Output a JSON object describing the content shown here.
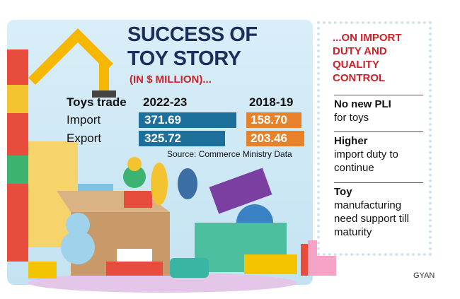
{
  "title": "SUCCESS OF TOY STORY",
  "subtitle": "(IN $ MILLION)...",
  "table": {
    "header": [
      "Toys trade",
      "2022-23",
      "2018-19"
    ],
    "rows": [
      [
        "Import",
        "371.69",
        "158.70"
      ],
      [
        "Export",
        "325.72",
        "203.46"
      ]
    ]
  },
  "source": "Source: Commerce Ministry Data",
  "side_panel": {
    "heading": "...ON IMPORT DUTY AND QUALITY CONTROL",
    "items": [
      {
        "bold": "No new PLI",
        "text": "for toys"
      },
      {
        "bold": "Higher",
        "text": "import duty to continue"
      },
      {
        "bold": "Toy",
        "text": "manufacturing need support till maturity"
      }
    ]
  },
  "credit": "GYAN"
}
